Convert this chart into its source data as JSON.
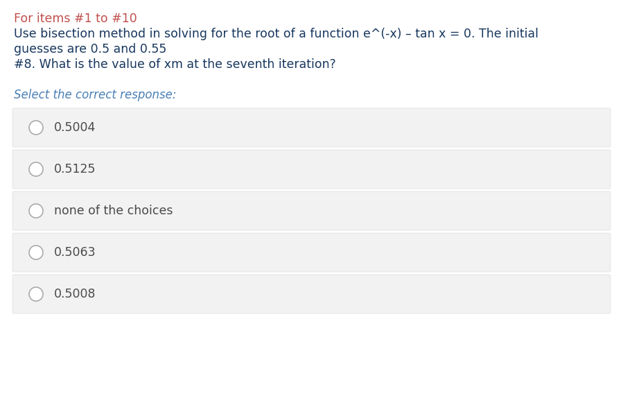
{
  "background_color": "#ffffff",
  "header_lines": [
    {
      "text": "For items #1 to #10",
      "color": "#c0504d"
    },
    {
      "text": "Use bisection method in solving for the root of a function e^(-x) – tan x = 0. The initial",
      "color": "#17375e"
    },
    {
      "text": "guesses are 0.5 and 0.55",
      "color": "#17375e"
    },
    {
      "text": "#8. What is the value of xm at the seventh iteration?",
      "color": "#17375e"
    }
  ],
  "prompt_text": "Select the correct response:",
  "prompt_color": "#4a7fb5",
  "prompt_style": "italic",
  "options": [
    "0.5004",
    "0.5125",
    "none of the choices",
    "0.5063",
    "0.5008"
  ],
  "option_text_color": "#4a4a4a",
  "option_bg_color": "#f2f2f2",
  "option_border_color": "#dddddd",
  "circle_edge_color": "#aaaaaa",
  "font_size_header": 12.5,
  "font_size_options": 12.5,
  "font_size_prompt": 12.0,
  "fig_width": 8.99,
  "fig_height": 5.68,
  "dpi": 100
}
